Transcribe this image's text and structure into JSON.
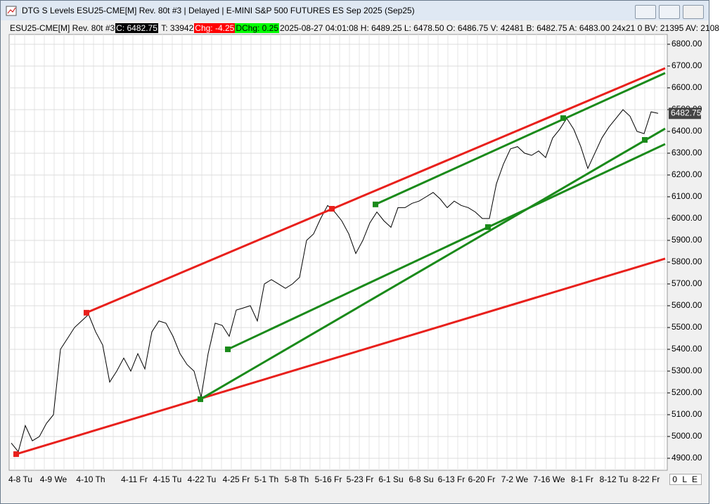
{
  "window": {
    "title": "DTG S Levels ESU25-CME[M]  Rev. 80t #3 | Delayed | E-MINI S&P 500 FUTURES ES Sep 2025 (Sep25)",
    "status": "0 L E"
  },
  "info_bar": {
    "symbol": "ESU25-CME[M]  Rev. 80t #3",
    "close": "C: 6482.75",
    "ticks": "T: 33942",
    "change": "Chg: -4.25",
    "dchange": "DChg: 0.25",
    "details": "2025-08-27 04:01:08 H: 6489.25 L: 6478.50 O: 6486.75 V: 42481 B: 6482.75 A: 6483.00 24x21 0 BV: 21395 AV: 2108"
  },
  "chart_data": {
    "type": "line",
    "x_tick_labels": [
      "4-8 Tu",
      "4-9 We",
      "4-10 Th",
      "4-11 Fr",
      "4-15 Tu",
      "4-22 Tu",
      "4-25 Fr",
      "5-1 Th",
      "5-8 Th",
      "5-16 Fr",
      "5-23 Fr",
      "6-1 Su",
      "6-8 Su",
      "6-13 Fr",
      "6-20 Fr",
      "7-2 We",
      "7-16 We",
      "8-1 Fr",
      "8-12 Tu",
      "8-22 Fr"
    ],
    "series": [
      {
        "color": "#000000",
        "values": [
          4970,
          4930,
          5050,
          4980,
          5000,
          5060,
          5100,
          5400,
          5450,
          5500,
          5530,
          5560,
          5480,
          5420,
          5250,
          5300,
          5360,
          5300,
          5380,
          5310,
          5480,
          5530,
          5520,
          5460,
          5380,
          5330,
          5300,
          5180,
          5380,
          5520,
          5510,
          5460,
          5580,
          5590,
          5600,
          5530,
          5700,
          5720,
          5700,
          5680,
          5700,
          5730,
          5900,
          5930,
          6000,
          6060,
          6030,
          5990,
          5930,
          5840,
          5900,
          5980,
          6030,
          5990,
          5960,
          6050,
          6050,
          6070,
          6080,
          6100,
          6120,
          6090,
          6050,
          6080,
          6060,
          6050,
          6030,
          6000,
          6000,
          6160,
          6250,
          6320,
          6330,
          6300,
          6290,
          6310,
          6280,
          6370,
          6410,
          6460,
          6410,
          6330,
          6230,
          6300,
          6370,
          6420,
          6460,
          6500,
          6470,
          6400,
          6390,
          6490,
          6482.75
        ]
      }
    ],
    "last_price_label": "6482.75",
    "trendlines": [
      {
        "color": "#e8201c",
        "values": [
          5568,
          6690
        ]
      },
      {
        "color": "#e8201c",
        "values": [
          4919,
          5816
        ]
      },
      {
        "color": "#1a8a1a",
        "values": [
          6065,
          6668
        ]
      },
      {
        "color": "#1a8a1a",
        "values": [
          5400,
          6342
        ]
      },
      {
        "color": "#1a8a1a",
        "values": [
          5171,
          6413
        ]
      }
    ],
    "markers": [
      {
        "color": "#e8201c",
        "values": [
          4919,
          5568,
          6045
        ]
      },
      {
        "color": "#1a8a1a",
        "values": [
          5171,
          5400,
          6065,
          5961,
          6461,
          6361
        ]
      }
    ],
    "ylim": [
      4845,
      6845
    ],
    "yticks": [
      {
        "value": 4900,
        "label": "4900.00"
      },
      {
        "value": 5000,
        "label": "5000.00"
      },
      {
        "value": 5100,
        "label": "5100.00"
      },
      {
        "value": 5200,
        "label": "5200.00"
      },
      {
        "value": 5300,
        "label": "5300.00"
      },
      {
        "value": 5400,
        "label": "5400.00"
      },
      {
        "value": 5500,
        "label": "5500.00"
      },
      {
        "value": 5600,
        "label": "5600.00"
      },
      {
        "value": 5700,
        "label": "5700.00"
      },
      {
        "value": 5800,
        "label": "5800.00"
      },
      {
        "value": 5900,
        "label": "5900.00"
      },
      {
        "value": 6000,
        "label": "6000.00"
      },
      {
        "value": 6100,
        "label": "6100.00"
      },
      {
        "value": 6200,
        "label": "6200.00"
      },
      {
        "value": 6300,
        "label": "6300.00"
      },
      {
        "value": 6400,
        "label": "6400.00"
      },
      {
        "value": 6500,
        "label": "6500.00"
      },
      {
        "value": 6600,
        "label": "6600.00"
      },
      {
        "value": 6700,
        "label": "6700.00"
      },
      {
        "value": 6800,
        "label": "6800.00"
      }
    ],
    "grid": true
  }
}
